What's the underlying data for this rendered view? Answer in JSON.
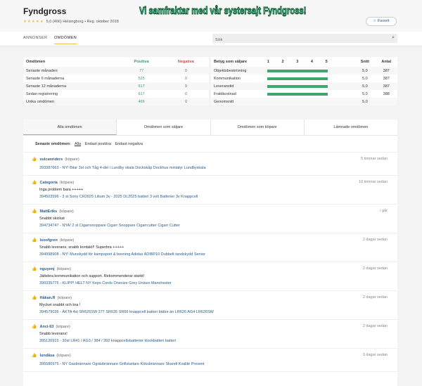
{
  "header": {
    "title": "Fyndgross",
    "stars": "★★★★★",
    "rating": "5,0 (466)",
    "meta": "Helsingborg • Reg. oktober 2018",
    "banner": "Vi samfraktar med vår systersajt Fyndgross!",
    "favorite": "☆ Favorit"
  },
  "nav": {
    "tabs": [
      "ANNONSER",
      "OMDÖMEN"
    ],
    "search_placeholder": "Sök"
  },
  "summary": {
    "headers": [
      "Omdömen",
      "Positiva",
      "Negativa"
    ],
    "rows": [
      [
        "Senaste månaden",
        "77",
        "0"
      ],
      [
        "Senaste 6 månaderna",
        "525",
        "0"
      ],
      [
        "Senaste 12 månaderna",
        "617",
        "0"
      ],
      [
        "Sedan registrering",
        "617",
        "0"
      ],
      [
        "Unika omdömen",
        "466",
        "0"
      ]
    ]
  },
  "ratings": {
    "headers": [
      "Betyg som säljare",
      "1",
      "2",
      "3",
      "4",
      "5",
      "Snitt",
      "Antal"
    ],
    "rows": [
      {
        "label": "Objektsbeskrivning",
        "value": 5.0,
        "avg": "5,0",
        "count": "387"
      },
      {
        "label": "Kommunikation",
        "value": 5.0,
        "avg": "5,0",
        "count": "387"
      },
      {
        "label": "Leveranstid",
        "value": 5.0,
        "avg": "5,0",
        "count": "387"
      },
      {
        "label": "Fraktkostnad",
        "value": 5.0,
        "avg": "5,0",
        "count": "388"
      }
    ],
    "total_label": "Genomsnitt",
    "total_avg": "5,0",
    "bar_color": "#3fa66e"
  },
  "tabs": [
    "Alla omdömen",
    "Omdömen som säljare",
    "Omdömen som köpare",
    "Lämnade omdömen"
  ],
  "filter": {
    "label": "Senaste omdömen:",
    "options": [
      "Alla",
      "Endast positiva",
      "Endast negativa"
    ]
  },
  "reviews": [
    {
      "user": "vulcanriders",
      "role": "(köpare)",
      "time": "5 timmar sedan",
      "text": "",
      "item": "393387663 - NY! Bilar 3st och Tåg 4-del i Lundby skala Dockskåp Dockhus miniatyr Lundbyskala"
    },
    {
      "user": "Categoria",
      "role": "(köpare)",
      "time": "10 timmar sedan",
      "text": "Inga problem bara +++++",
      "item": "394503596 - 3 st Sony CR2025 Litium 3v - 2025 DL2025 batteri 3 volt Batterier 3v Knappcell"
    },
    {
      "user": "MattEriks",
      "role": "(köpare)",
      "time": "i går",
      "text": "Snabbt skickat",
      "item": "394734747 - NYA! 2 st Cigarrsnoppare Cigarr Snoppare Cigarrcutter Cigarr Cutter"
    },
    {
      "user": "looofgren",
      "role": "(köpare)",
      "time": "2 dagar sedan",
      "text": "Snabb leverans, snabb kontakt!! Superbra +++++",
      "item": "394998908 - NY! Munskydd för kampsport & boxning Adidas ADIBP10 Dubbelt tandskydd Senior"
    },
    {
      "user": "nguyenj",
      "role": "(köpare)",
      "time": "2 dagar sedan",
      "text": "Jättebra kommunikation och support. Rekommenderar starkt!",
      "item": "390335775 - KLIPP! HELT NY Keps Cords Onesize Grey Unisex Manchester"
    },
    {
      "user": "Håkan.R",
      "role": "(köpare)",
      "time": "2 dagar sedan",
      "text": "Mycket snabbt och bra !",
      "item": "394579036 - ÄKTA 4st SR626SW 377 SR626 SR66 knappcell batteri bättre än LR626 AG4 LR626SW"
    },
    {
      "user": "Anci-63",
      "role": "(köpare)",
      "time": "2 dagar sedan",
      "text": "Snabb leverans!",
      "item": "395126915 - 30st LR41 / AG3 / 384 / 392 knappcellsbatterier klockbatteri batteri"
    },
    {
      "user": "lundåsa",
      "role": "(köpare)",
      "time": "3 dagar sedan",
      "text": "",
      "item": "395580975 - NY Gasbrännare Ogräsbrännare Grillstartare Köksbrännare Skandi Kvalité Present"
    }
  ]
}
